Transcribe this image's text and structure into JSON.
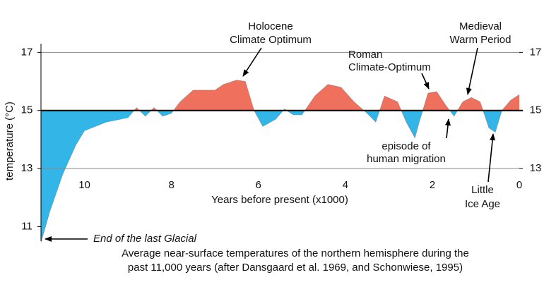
{
  "chart_data": {
    "type": "area",
    "y_label": "temperature (°C)",
    "x_label": "Years before present (x1000)",
    "x": [
      11.0,
      10.8,
      10.5,
      10.2,
      10.0,
      9.5,
      9.0,
      8.8,
      8.6,
      8.4,
      8.2,
      8.0,
      7.8,
      7.5,
      7.0,
      6.8,
      6.5,
      6.3,
      6.1,
      5.9,
      5.6,
      5.4,
      5.2,
      5.0,
      4.7,
      4.4,
      4.1,
      3.8,
      3.5,
      3.3,
      3.1,
      2.8,
      2.6,
      2.4,
      2.3,
      2.1,
      1.9,
      1.7,
      1.5,
      1.3,
      1.1,
      0.9,
      0.7,
      0.55,
      0.4,
      0.2,
      0.0
    ],
    "values": [
      10.45,
      11.5,
      12.8,
      13.8,
      14.3,
      14.6,
      14.75,
      15.1,
      14.8,
      15.1,
      14.8,
      14.9,
      15.3,
      15.7,
      15.7,
      15.9,
      16.05,
      16.0,
      15.0,
      14.45,
      14.7,
      15.05,
      14.85,
      14.85,
      15.5,
      15.9,
      15.8,
      15.3,
      14.9,
      14.6,
      15.5,
      15.3,
      14.6,
      14.05,
      14.6,
      15.6,
      15.65,
      15.2,
      14.8,
      15.3,
      15.45,
      15.3,
      14.4,
      14.25,
      15.0,
      15.35,
      15.55
    ],
    "baseline": 15,
    "color_above": "#f0705e",
    "color_below": "#33b5e8",
    "xlim": [
      11,
      0
    ],
    "xticks": [
      10,
      8,
      6,
      4,
      2,
      0
    ],
    "ylim": [
      10.5,
      17.3
    ],
    "yticks": [
      11,
      13,
      15,
      17
    ],
    "y2lim": [
      10.5,
      17.3
    ],
    "y2ticks": [
      13,
      15,
      17
    ],
    "grid": true,
    "annotations": [
      {
        "lines": [
          "Holocene",
          "Climate Optimum"
        ]
      },
      {
        "lines": [
          "Roman",
          "Climate-Optimum"
        ]
      },
      {
        "lines": [
          "Medieval",
          "Warm Period"
        ]
      },
      {
        "lines": [
          "episode of",
          "human migration"
        ]
      },
      {
        "lines": [
          "Little",
          "Ice Age"
        ]
      },
      {
        "lines": [
          "End of the last Glacial"
        ]
      }
    ],
    "caption": [
      "Average near-surface temperatures of the northern hemisphere during the",
      "past 11,000 years (after Dansgaard et al. 1969, and Schonwiese, 1995)"
    ]
  }
}
